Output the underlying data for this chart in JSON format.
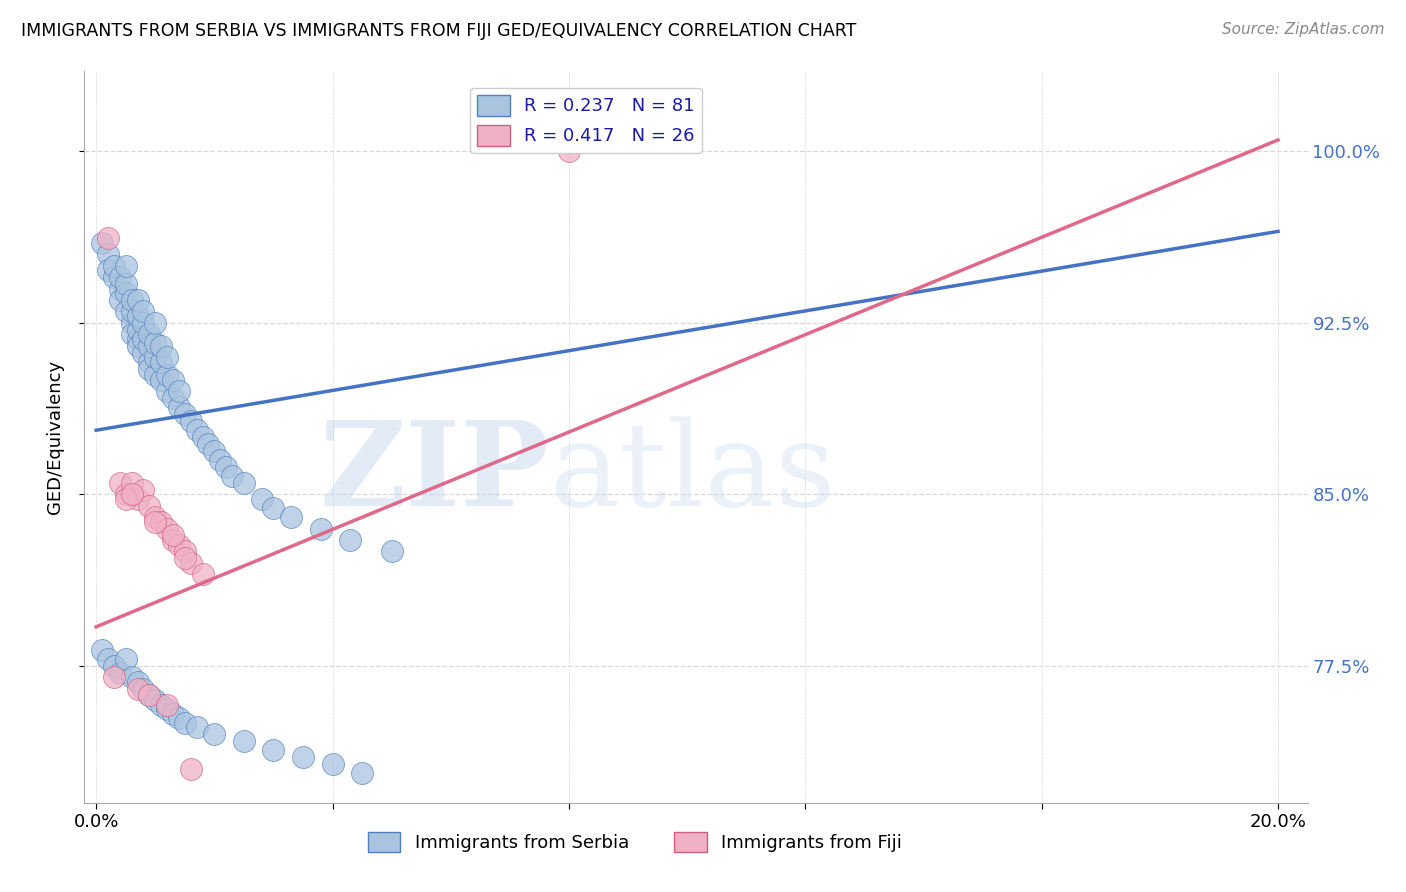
{
  "title": "IMMIGRANTS FROM SERBIA VS IMMIGRANTS FROM FIJI GED/EQUIVALENCY CORRELATION CHART",
  "source": "Source: ZipAtlas.com",
  "ylabel": "GED/Equivalency",
  "ytick_labels": [
    "100.0%",
    "92.5%",
    "85.0%",
    "77.5%"
  ],
  "ytick_values": [
    1.0,
    0.925,
    0.85,
    0.775
  ],
  "xlim": [
    -0.002,
    0.205
  ],
  "ylim": [
    0.715,
    1.035
  ],
  "serbia_color": "#aac4e0",
  "fiji_color": "#f0b0c5",
  "serbia_edge_color": "#5080c0",
  "fiji_edge_color": "#d06080",
  "serbia_line_color": "#4472c4",
  "fiji_line_color": "#e06888",
  "legend_label_1": "R = 0.237   N = 81",
  "legend_label_2": "R = 0.417   N = 26",
  "legend_series_1": "Immigrants from Serbia",
  "legend_series_2": "Immigrants from Fiji",
  "watermark_zip": "ZIP",
  "watermark_atlas": "atlas",
  "serbia_trend_x": [
    0.0,
    0.2
  ],
  "serbia_trend_y": [
    0.878,
    0.965
  ],
  "fiji_trend_x": [
    0.0,
    0.2
  ],
  "fiji_trend_y": [
    0.792,
    1.005
  ],
  "grid_color": "#d8d8d8",
  "axis_color": "#aaaaaa",
  "right_tick_color": "#4472c4",
  "serbia_x": [
    0.001,
    0.002,
    0.002,
    0.003,
    0.003,
    0.004,
    0.004,
    0.004,
    0.005,
    0.005,
    0.005,
    0.005,
    0.006,
    0.006,
    0.006,
    0.006,
    0.007,
    0.007,
    0.007,
    0.007,
    0.007,
    0.008,
    0.008,
    0.008,
    0.008,
    0.009,
    0.009,
    0.009,
    0.009,
    0.01,
    0.01,
    0.01,
    0.01,
    0.011,
    0.011,
    0.011,
    0.012,
    0.012,
    0.012,
    0.013,
    0.013,
    0.014,
    0.014,
    0.015,
    0.016,
    0.017,
    0.018,
    0.019,
    0.02,
    0.021,
    0.022,
    0.023,
    0.025,
    0.028,
    0.03,
    0.033,
    0.038,
    0.043,
    0.05,
    0.001,
    0.002,
    0.003,
    0.004,
    0.005,
    0.006,
    0.007,
    0.008,
    0.009,
    0.01,
    0.011,
    0.012,
    0.013,
    0.014,
    0.015,
    0.017,
    0.02,
    0.025,
    0.03,
    0.035,
    0.04,
    0.045
  ],
  "serbia_y": [
    0.96,
    0.955,
    0.948,
    0.945,
    0.95,
    0.94,
    0.945,
    0.935,
    0.938,
    0.942,
    0.95,
    0.93,
    0.925,
    0.93,
    0.935,
    0.92,
    0.918,
    0.922,
    0.928,
    0.935,
    0.915,
    0.912,
    0.918,
    0.925,
    0.93,
    0.908,
    0.915,
    0.92,
    0.905,
    0.902,
    0.91,
    0.916,
    0.925,
    0.9,
    0.908,
    0.915,
    0.895,
    0.902,
    0.91,
    0.892,
    0.9,
    0.888,
    0.895,
    0.885,
    0.882,
    0.878,
    0.875,
    0.872,
    0.869,
    0.865,
    0.862,
    0.858,
    0.855,
    0.848,
    0.844,
    0.84,
    0.835,
    0.83,
    0.825,
    0.782,
    0.778,
    0.775,
    0.772,
    0.778,
    0.77,
    0.768,
    0.765,
    0.762,
    0.76,
    0.758,
    0.756,
    0.754,
    0.752,
    0.75,
    0.748,
    0.745,
    0.742,
    0.738,
    0.735,
    0.732,
    0.728
  ],
  "fiji_x": [
    0.002,
    0.003,
    0.004,
    0.005,
    0.006,
    0.007,
    0.008,
    0.009,
    0.01,
    0.011,
    0.012,
    0.013,
    0.014,
    0.015,
    0.016,
    0.018,
    0.01,
    0.007,
    0.009,
    0.012,
    0.08,
    0.005,
    0.006,
    0.016,
    0.013,
    0.015
  ],
  "fiji_y": [
    0.962,
    0.77,
    0.855,
    0.85,
    0.855,
    0.848,
    0.852,
    0.845,
    0.84,
    0.838,
    0.835,
    0.83,
    0.828,
    0.825,
    0.82,
    0.815,
    0.838,
    0.765,
    0.762,
    0.758,
    1.0,
    0.848,
    0.85,
    0.73,
    0.832,
    0.822
  ]
}
